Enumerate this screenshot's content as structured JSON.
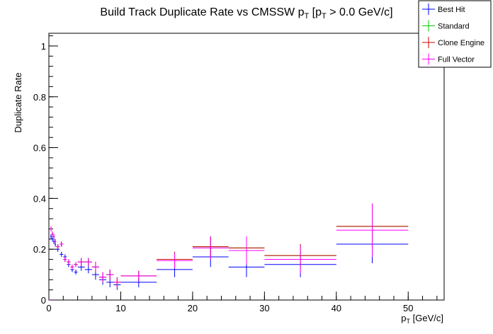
{
  "chart_data": {
    "type": "scatter",
    "title": {
      "text": "Build Track Duplicate Rate vs CMSSW p",
      "sub1": "T",
      "mid": " [p",
      "sub2": "T",
      "tail": " > 0.0 GeV/c]"
    },
    "xlabel": {
      "main": "p",
      "sub": "T",
      "tail": " [GeV/c]"
    },
    "ylabel": "Duplicate Rate",
    "xlim": [
      0,
      55
    ],
    "ylim": [
      0,
      1.05
    ],
    "x_ticks": [
      0,
      10,
      20,
      30,
      40,
      50
    ],
    "x_tick_labels": [
      "0",
      "10",
      "20",
      "30",
      "40",
      "50"
    ],
    "y_ticks": [
      0,
      0.2,
      0.4,
      0.6,
      0.8,
      1
    ],
    "y_tick_labels": [
      "0",
      "0.2",
      "0.4",
      "0.6",
      "0.8",
      "1"
    ],
    "grid": false,
    "legend": {
      "placement": "top-right",
      "entries": [
        {
          "name": "Best Hit",
          "color": "#0000ff"
        },
        {
          "name": "Standard",
          "color": "#00cc00"
        },
        {
          "name": "Clone Engine",
          "color": "#cc0000"
        },
        {
          "name": "Full Vector",
          "color": "#ff00ff"
        }
      ]
    },
    "series": [
      {
        "name": "Best Hit",
        "color": "#0000ff",
        "points": [
          {
            "x": 0.1,
            "xerr": 0.1,
            "y": 0.0,
            "yerr": 0.0
          },
          {
            "x": 0.3,
            "xerr": 0.1,
            "y": 0.25,
            "yerr": 0.01
          },
          {
            "x": 0.5,
            "xerr": 0.1,
            "y": 0.24,
            "yerr": 0.01
          },
          {
            "x": 0.7,
            "xerr": 0.1,
            "y": 0.23,
            "yerr": 0.01
          },
          {
            "x": 0.9,
            "xerr": 0.1,
            "y": 0.22,
            "yerr": 0.01
          },
          {
            "x": 1.25,
            "xerr": 0.25,
            "y": 0.2,
            "yerr": 0.01
          },
          {
            "x": 1.75,
            "xerr": 0.25,
            "y": 0.18,
            "yerr": 0.01
          },
          {
            "x": 2.25,
            "xerr": 0.25,
            "y": 0.17,
            "yerr": 0.01
          },
          {
            "x": 2.75,
            "xerr": 0.25,
            "y": 0.14,
            "yerr": 0.01
          },
          {
            "x": 3.25,
            "xerr": 0.25,
            "y": 0.12,
            "yerr": 0.01
          },
          {
            "x": 3.75,
            "xerr": 0.25,
            "y": 0.11,
            "yerr": 0.01
          },
          {
            "x": 4.5,
            "xerr": 0.5,
            "y": 0.13,
            "yerr": 0.015
          },
          {
            "x": 5.5,
            "xerr": 0.5,
            "y": 0.12,
            "yerr": 0.015
          },
          {
            "x": 6.5,
            "xerr": 0.5,
            "y": 0.1,
            "yerr": 0.02
          },
          {
            "x": 7.5,
            "xerr": 0.5,
            "y": 0.08,
            "yerr": 0.02
          },
          {
            "x": 8.5,
            "xerr": 0.5,
            "y": 0.07,
            "yerr": 0.02
          },
          {
            "x": 9.5,
            "xerr": 0.5,
            "y": 0.06,
            "yerr": 0.02
          },
          {
            "x": 12.5,
            "xerr": 2.5,
            "y": 0.07,
            "yerr": 0.02
          },
          {
            "x": 17.5,
            "xerr": 2.5,
            "y": 0.12,
            "yerr": 0.03
          },
          {
            "x": 22.5,
            "xerr": 2.5,
            "y": 0.17,
            "yerr": 0.04
          },
          {
            "x": 27.5,
            "xerr": 2.5,
            "y": 0.13,
            "yerr": 0.04
          },
          {
            "x": 35,
            "xerr": 5,
            "y": 0.14,
            "yerr": 0.05
          },
          {
            "x": 45,
            "xerr": 5,
            "y": 0.22,
            "yerr": 0.075
          }
        ]
      },
      {
        "name": "Standard",
        "color": "#00cc00",
        "points": [
          {
            "x": 0.1,
            "xerr": 0.1,
            "y": 0.0,
            "yerr": 0.0
          },
          {
            "x": 0.3,
            "xerr": 0.1,
            "y": 0.28,
            "yerr": 0.01
          },
          {
            "x": 0.5,
            "xerr": 0.1,
            "y": 0.26,
            "yerr": 0.01
          },
          {
            "x": 0.7,
            "xerr": 0.1,
            "y": 0.25,
            "yerr": 0.01
          },
          {
            "x": 0.9,
            "xerr": 0.1,
            "y": 0.23,
            "yerr": 0.01
          },
          {
            "x": 1.25,
            "xerr": 0.25,
            "y": 0.21,
            "yerr": 0.01
          },
          {
            "x": 1.75,
            "xerr": 0.25,
            "y": 0.22,
            "yerr": 0.01
          },
          {
            "x": 2.25,
            "xerr": 0.25,
            "y": 0.16,
            "yerr": 0.01
          },
          {
            "x": 2.75,
            "xerr": 0.25,
            "y": 0.15,
            "yerr": 0.01
          },
          {
            "x": 3.25,
            "xerr": 0.25,
            "y": 0.13,
            "yerr": 0.01
          },
          {
            "x": 3.75,
            "xerr": 0.25,
            "y": 0.14,
            "yerr": 0.01
          },
          {
            "x": 4.5,
            "xerr": 0.5,
            "y": 0.15,
            "yerr": 0.015
          },
          {
            "x": 5.5,
            "xerr": 0.5,
            "y": 0.15,
            "yerr": 0.015
          },
          {
            "x": 6.5,
            "xerr": 0.5,
            "y": 0.13,
            "yerr": 0.02
          },
          {
            "x": 7.5,
            "xerr": 0.5,
            "y": 0.09,
            "yerr": 0.02
          },
          {
            "x": 8.5,
            "xerr": 0.5,
            "y": 0.1,
            "yerr": 0.02
          },
          {
            "x": 9.5,
            "xerr": 0.5,
            "y": 0.07,
            "yerr": 0.02
          },
          {
            "x": 12.5,
            "xerr": 2.5,
            "y": 0.095,
            "yerr": 0.02
          },
          {
            "x": 17.5,
            "xerr": 2.5,
            "y": 0.16,
            "yerr": 0.03
          },
          {
            "x": 22.5,
            "xerr": 2.5,
            "y": 0.21,
            "yerr": 0.04
          },
          {
            "x": 27.5,
            "xerr": 2.5,
            "y": 0.205,
            "yerr": 0.045
          },
          {
            "x": 35,
            "xerr": 5,
            "y": 0.175,
            "yerr": 0.045
          },
          {
            "x": 45,
            "xerr": 5,
            "y": 0.29,
            "yerr": 0.09
          }
        ]
      },
      {
        "name": "Clone Engine",
        "color": "#cc0000",
        "points": [
          {
            "x": 0.1,
            "xerr": 0.1,
            "y": 0.0,
            "yerr": 0.0
          },
          {
            "x": 0.3,
            "xerr": 0.1,
            "y": 0.28,
            "yerr": 0.01
          },
          {
            "x": 0.5,
            "xerr": 0.1,
            "y": 0.26,
            "yerr": 0.01
          },
          {
            "x": 0.7,
            "xerr": 0.1,
            "y": 0.25,
            "yerr": 0.01
          },
          {
            "x": 0.9,
            "xerr": 0.1,
            "y": 0.23,
            "yerr": 0.01
          },
          {
            "x": 1.25,
            "xerr": 0.25,
            "y": 0.21,
            "yerr": 0.01
          },
          {
            "x": 1.75,
            "xerr": 0.25,
            "y": 0.22,
            "yerr": 0.01
          },
          {
            "x": 2.25,
            "xerr": 0.25,
            "y": 0.16,
            "yerr": 0.01
          },
          {
            "x": 2.75,
            "xerr": 0.25,
            "y": 0.15,
            "yerr": 0.01
          },
          {
            "x": 3.25,
            "xerr": 0.25,
            "y": 0.13,
            "yerr": 0.01
          },
          {
            "x": 3.75,
            "xerr": 0.25,
            "y": 0.14,
            "yerr": 0.01
          },
          {
            "x": 4.5,
            "xerr": 0.5,
            "y": 0.15,
            "yerr": 0.015
          },
          {
            "x": 5.5,
            "xerr": 0.5,
            "y": 0.15,
            "yerr": 0.015
          },
          {
            "x": 6.5,
            "xerr": 0.5,
            "y": 0.13,
            "yerr": 0.02
          },
          {
            "x": 7.5,
            "xerr": 0.5,
            "y": 0.09,
            "yerr": 0.02
          },
          {
            "x": 8.5,
            "xerr": 0.5,
            "y": 0.1,
            "yerr": 0.02
          },
          {
            "x": 9.5,
            "xerr": 0.5,
            "y": 0.07,
            "yerr": 0.02
          },
          {
            "x": 12.5,
            "xerr": 2.5,
            "y": 0.095,
            "yerr": 0.02
          },
          {
            "x": 17.5,
            "xerr": 2.5,
            "y": 0.16,
            "yerr": 0.03
          },
          {
            "x": 22.5,
            "xerr": 2.5,
            "y": 0.21,
            "yerr": 0.04
          },
          {
            "x": 27.5,
            "xerr": 2.5,
            "y": 0.205,
            "yerr": 0.045
          },
          {
            "x": 35,
            "xerr": 5,
            "y": 0.175,
            "yerr": 0.045
          },
          {
            "x": 45,
            "xerr": 5,
            "y": 0.29,
            "yerr": 0.09
          }
        ]
      },
      {
        "name": "Full Vector",
        "color": "#ff00ff",
        "points": [
          {
            "x": 0.1,
            "xerr": 0.1,
            "y": 0.0,
            "yerr": 0.0
          },
          {
            "x": 0.3,
            "xerr": 0.1,
            "y": 0.28,
            "yerr": 0.01
          },
          {
            "x": 0.5,
            "xerr": 0.1,
            "y": 0.26,
            "yerr": 0.01
          },
          {
            "x": 0.7,
            "xerr": 0.1,
            "y": 0.25,
            "yerr": 0.01
          },
          {
            "x": 0.9,
            "xerr": 0.1,
            "y": 0.23,
            "yerr": 0.01
          },
          {
            "x": 1.25,
            "xerr": 0.25,
            "y": 0.21,
            "yerr": 0.01
          },
          {
            "x": 1.75,
            "xerr": 0.25,
            "y": 0.22,
            "yerr": 0.01
          },
          {
            "x": 2.25,
            "xerr": 0.25,
            "y": 0.16,
            "yerr": 0.01
          },
          {
            "x": 2.75,
            "xerr": 0.25,
            "y": 0.15,
            "yerr": 0.01
          },
          {
            "x": 3.25,
            "xerr": 0.25,
            "y": 0.13,
            "yerr": 0.01
          },
          {
            "x": 3.75,
            "xerr": 0.25,
            "y": 0.14,
            "yerr": 0.01
          },
          {
            "x": 4.5,
            "xerr": 0.5,
            "y": 0.15,
            "yerr": 0.015
          },
          {
            "x": 5.5,
            "xerr": 0.5,
            "y": 0.15,
            "yerr": 0.015
          },
          {
            "x": 6.5,
            "xerr": 0.5,
            "y": 0.13,
            "yerr": 0.02
          },
          {
            "x": 7.5,
            "xerr": 0.5,
            "y": 0.09,
            "yerr": 0.02
          },
          {
            "x": 8.5,
            "xerr": 0.5,
            "y": 0.1,
            "yerr": 0.02
          },
          {
            "x": 9.5,
            "xerr": 0.5,
            "y": 0.07,
            "yerr": 0.02
          },
          {
            "x": 12.5,
            "xerr": 2.5,
            "y": 0.095,
            "yerr": 0.02
          },
          {
            "x": 17.5,
            "xerr": 2.5,
            "y": 0.155,
            "yerr": 0.03
          },
          {
            "x": 22.5,
            "xerr": 2.5,
            "y": 0.205,
            "yerr": 0.045
          },
          {
            "x": 27.5,
            "xerr": 2.5,
            "y": 0.195,
            "yerr": 0.055
          },
          {
            "x": 35,
            "xerr": 5,
            "y": 0.16,
            "yerr": 0.055
          },
          {
            "x": 45,
            "xerr": 5,
            "y": 0.275,
            "yerr": 0.105
          }
        ]
      }
    ]
  }
}
